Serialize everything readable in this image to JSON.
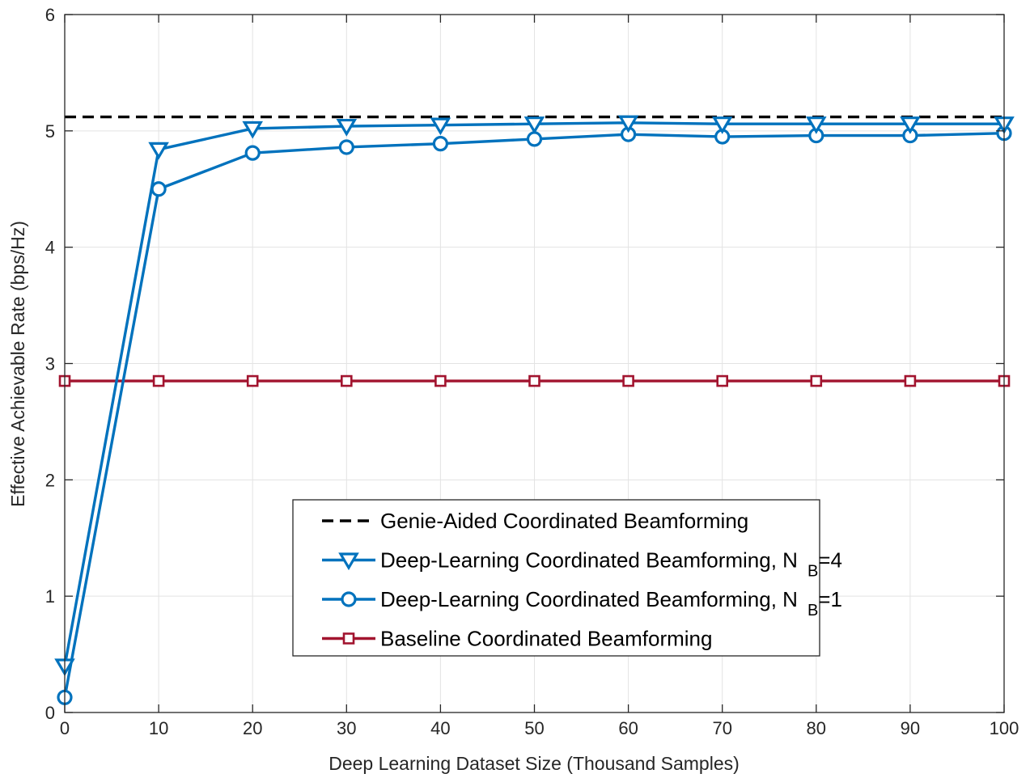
{
  "chart_data": {
    "type": "line",
    "xlabel": "Deep Learning Dataset Size (Thousand Samples)",
    "ylabel": "Effective Achievable Rate (bps/Hz)",
    "xlim": [
      0,
      100
    ],
    "ylim": [
      0,
      6
    ],
    "xticks": [
      0,
      10,
      20,
      30,
      40,
      50,
      60,
      70,
      80,
      90,
      100
    ],
    "yticks": [
      0,
      1,
      2,
      3,
      4,
      5,
      6
    ],
    "grid": true,
    "legend_position": "lower-right",
    "x": [
      0,
      10,
      20,
      30,
      40,
      50,
      60,
      70,
      80,
      90,
      100
    ],
    "series": [
      {
        "key": "genie",
        "name": "Genie-Aided Coordinated Beamforming",
        "name_main": "Genie-Aided Coordinated Beamforming",
        "name_sub": "",
        "name_tail": "",
        "color": "#000000",
        "dash": "dashed",
        "marker": "none",
        "values": [
          5.12,
          5.12,
          5.12,
          5.12,
          5.12,
          5.12,
          5.12,
          5.12,
          5.12,
          5.12,
          5.12
        ]
      },
      {
        "key": "dl4",
        "name": "Deep-Learning Coordinated Beamforming, N B=4",
        "name_main": "Deep-Learning Coordinated Beamforming, N",
        "name_sub": "B",
        "name_tail": "=4",
        "color": "#0072BD",
        "dash": "solid",
        "marker": "triangle-down",
        "values": [
          0.4,
          4.84,
          5.02,
          5.04,
          5.05,
          5.06,
          5.07,
          5.06,
          5.06,
          5.06,
          5.06
        ]
      },
      {
        "key": "dl1",
        "name": "Deep-Learning Coordinated Beamforming, N B=1",
        "name_main": "Deep-Learning Coordinated Beamforming, N",
        "name_sub": "B",
        "name_tail": "=1",
        "color": "#0072BD",
        "dash": "solid",
        "marker": "circle",
        "values": [
          0.13,
          4.5,
          4.81,
          4.86,
          4.89,
          4.93,
          4.97,
          4.95,
          4.96,
          4.96,
          4.98
        ]
      },
      {
        "key": "baseline",
        "name": "Baseline Coordinated Beamforming",
        "name_main": "Baseline Coordinated Beamforming",
        "name_sub": "",
        "name_tail": "",
        "color": "#A2142F",
        "dash": "solid",
        "marker": "square",
        "values": [
          2.85,
          2.85,
          2.85,
          2.85,
          2.85,
          2.85,
          2.85,
          2.85,
          2.85,
          2.85,
          2.85
        ]
      }
    ]
  }
}
